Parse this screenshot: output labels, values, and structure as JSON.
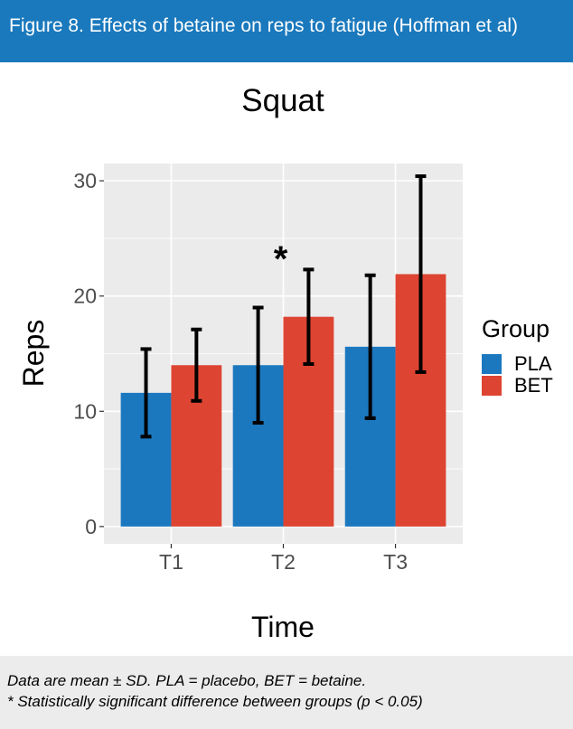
{
  "header": {
    "title": "Figure 8. Effects of betaine on reps to fatigue (Hoffman et al)"
  },
  "footer": {
    "line1": "Data are mean ± SD. PLA = placebo, BET = betaine.",
    "line2": "* Statistically significant difference between groups (p < 0.05)"
  },
  "colors": {
    "PLA": "#1b78bf",
    "BET": "#de4432",
    "panel": "#ebebeb",
    "grid": "#ffffff",
    "errorbar": "#000000"
  },
  "chart_data": {
    "type": "bar",
    "title": "Squat",
    "xlabel": "Time",
    "ylabel": "Reps",
    "categories": [
      "T1",
      "T2",
      "T3"
    ],
    "ylim": [
      -1.5,
      31.5
    ],
    "yticks": [
      0,
      10,
      20,
      30
    ],
    "legend": {
      "title": "Group",
      "position": "right"
    },
    "grid": true,
    "series": [
      {
        "name": "PLA",
        "values": [
          11.6,
          14.0,
          15.6
        ],
        "sd": [
          3.8,
          5.0,
          6.2
        ]
      },
      {
        "name": "BET",
        "values": [
          14.0,
          18.2,
          21.9
        ],
        "sd": [
          3.1,
          4.1,
          8.5
        ]
      }
    ],
    "annotations": [
      {
        "text": "*",
        "category": "T2"
      }
    ]
  }
}
